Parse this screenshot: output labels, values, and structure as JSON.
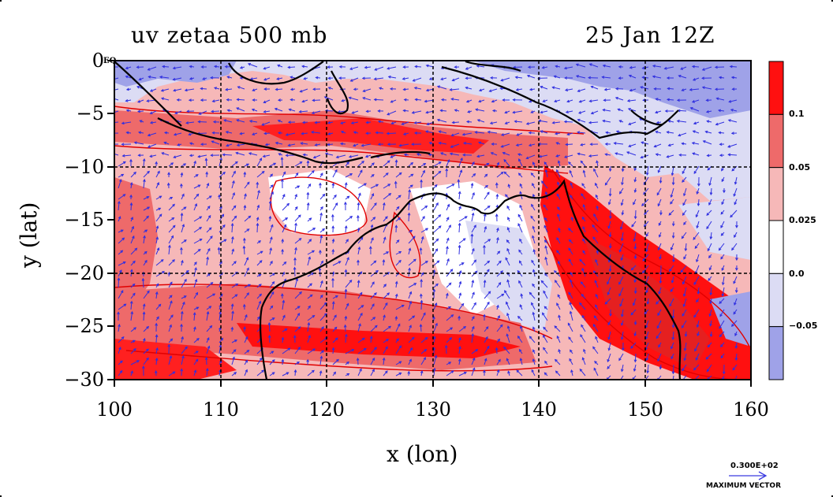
{
  "header": {
    "title_left": "uv zetaa 500 mb",
    "title_right": "25 Jan 12Z"
  },
  "axes": {
    "xlabel": "x (lon)",
    "ylabel": "y (lat)",
    "x_ticks": [
      "100",
      "110",
      "120",
      "130",
      "140",
      "150",
      "160"
    ],
    "y_ticks": [
      "0",
      "−5",
      "−10",
      "−15",
      "−20",
      "−25",
      "−30"
    ],
    "x_range": [
      100,
      160
    ],
    "y_range": [
      -30,
      0
    ],
    "eq_marker": "EQ",
    "grid": true
  },
  "colorbar": {
    "labels": [
      "0.1",
      "0.05",
      "0.025",
      "0.0",
      "−0.05"
    ],
    "bins": [
      {
        "color": "#ff1010",
        "from": 0.1,
        "to": null
      },
      {
        "color": "#ee6a6a",
        "from": 0.05,
        "to": 0.1
      },
      {
        "color": "#f6b8b8",
        "from": 0.025,
        "to": 0.05
      },
      {
        "color": "#ffffff",
        "from": 0.0,
        "to": 0.025
      },
      {
        "color": "#dcdcf4",
        "from": -0.05,
        "to": 0.0
      },
      {
        "color": "#9fa2e8",
        "from": null,
        "to": -0.05
      }
    ]
  },
  "vector_key": {
    "value": "0.300E+02",
    "caption": "MAXIMUM VECTOR",
    "color": "#3a3ae0"
  },
  "colors": {
    "contour_line": "#e00000",
    "coastline": "#000000",
    "wind_vector": "#2f2fe0"
  }
}
